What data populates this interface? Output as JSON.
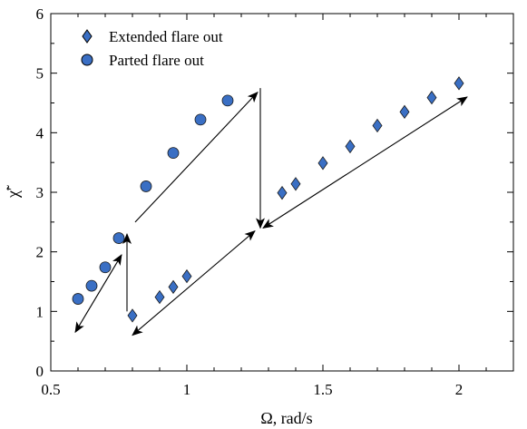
{
  "chart_data": {
    "type": "scatter",
    "xlabel": "Ω, rad/s",
    "ylabel": "χ̃′",
    "xlim": [
      0.5,
      2.2
    ],
    "ylim": [
      0,
      6
    ],
    "xticks": [
      0.5,
      1,
      1.5,
      2
    ],
    "xtick_labels": [
      "0.5",
      "1",
      "1.5",
      "2"
    ],
    "yticks": [
      0,
      1,
      2,
      3,
      4,
      5,
      6
    ],
    "ytick_labels": [
      "0",
      "1",
      "2",
      "3",
      "4",
      "5",
      "6"
    ],
    "grid": false,
    "legend_position": "top-left",
    "marker_color": "#3a6fc4",
    "series": [
      {
        "name": "Extended flare out",
        "marker": "diamond",
        "x": [
          0.8,
          0.9,
          0.95,
          1.0,
          1.35,
          1.4,
          1.5,
          1.6,
          1.7,
          1.8,
          1.9,
          2.0
        ],
        "y": [
          0.93,
          1.24,
          1.41,
          1.59,
          2.99,
          3.14,
          3.49,
          3.77,
          4.12,
          4.35,
          4.59,
          4.83
        ]
      },
      {
        "name": "Parted flare out",
        "marker": "circle",
        "x": [
          0.6,
          0.65,
          0.7,
          0.75,
          0.85,
          0.95,
          1.05,
          1.15
        ],
        "y": [
          1.21,
          1.43,
          1.74,
          2.23,
          3.1,
          3.66,
          4.22,
          4.54
        ]
      }
    ],
    "arrows": [
      {
        "from": [
          0.59,
          0.65
        ],
        "to": [
          0.76,
          1.95
        ],
        "heads": "both"
      },
      {
        "from": [
          0.78,
          1.0
        ],
        "to": [
          0.78,
          2.3
        ],
        "heads": "end"
      },
      {
        "from": [
          0.8,
          0.6
        ],
        "to": [
          1.25,
          2.35
        ],
        "heads": "both"
      },
      {
        "from": [
          1.27,
          4.75
        ],
        "to": [
          1.27,
          2.4
        ],
        "heads": "end"
      },
      {
        "from": [
          1.28,
          2.4
        ],
        "to": [
          2.03,
          4.6
        ],
        "heads": "both"
      },
      {
        "from": [
          0.81,
          2.5
        ],
        "to": [
          1.26,
          4.68
        ],
        "heads": "end"
      }
    ]
  }
}
